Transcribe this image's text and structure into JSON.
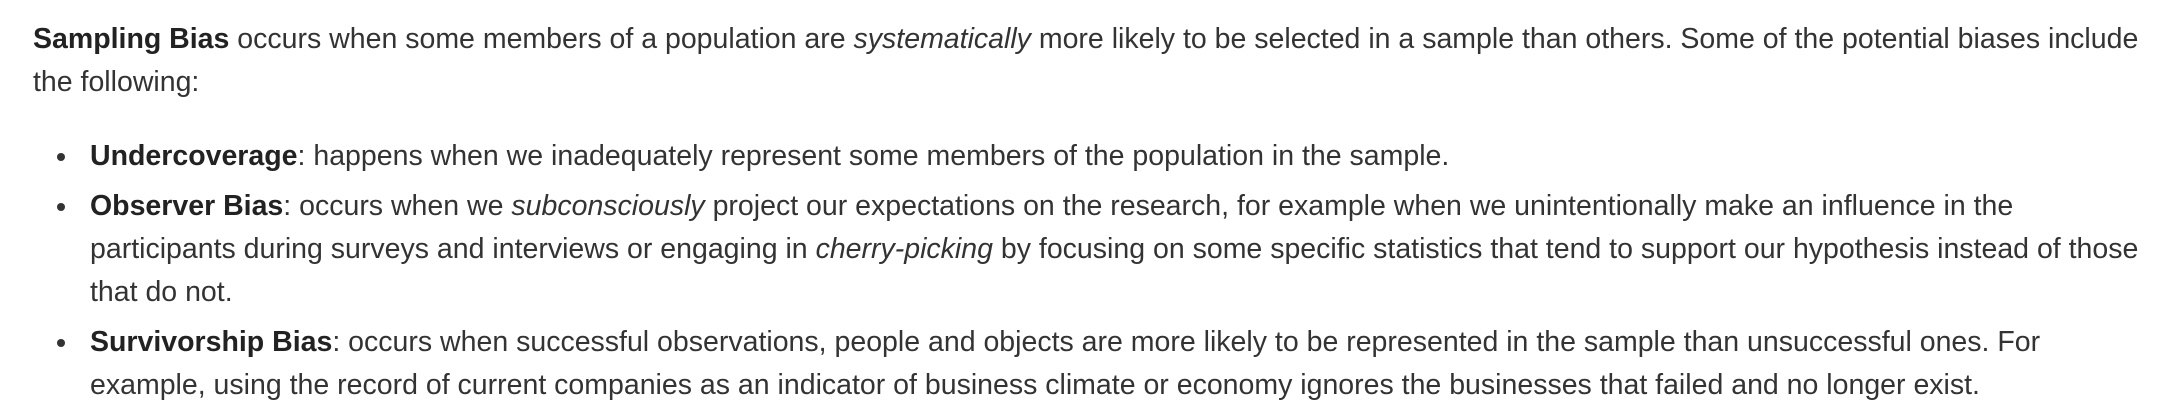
{
  "intro": {
    "term": "Sampling Bias",
    "text_before": " occurs when some members of a population are ",
    "emphasis": "systematically",
    "text_after": " more likely to be selected in a sample than others. Some of the potential biases include the following:"
  },
  "items": [
    {
      "term": "Undercoverage",
      "text": ": happens when we inadequately represent some members of the population in the sample."
    },
    {
      "term": "Observer Bias",
      "text_before": ": occurs when we ",
      "emphasis1": "subconsciously",
      "text_middle": " project our expectations on the research, for example when we unintentionally make an influence in the participants during surveys and interviews or engaging in ",
      "emphasis2": "cherry-picking",
      "text_after": " by focusing on some specific statistics that tend to support our hypothesis instead of those that do not."
    },
    {
      "term": "Survivorship Bias",
      "text": ": occurs when successful observations, people and objects are more likely to be represented in the sample than unsuccessful ones. For example, using the record of current companies as an indicator of business climate or economy ignores the businesses that failed and no longer exist."
    }
  ]
}
